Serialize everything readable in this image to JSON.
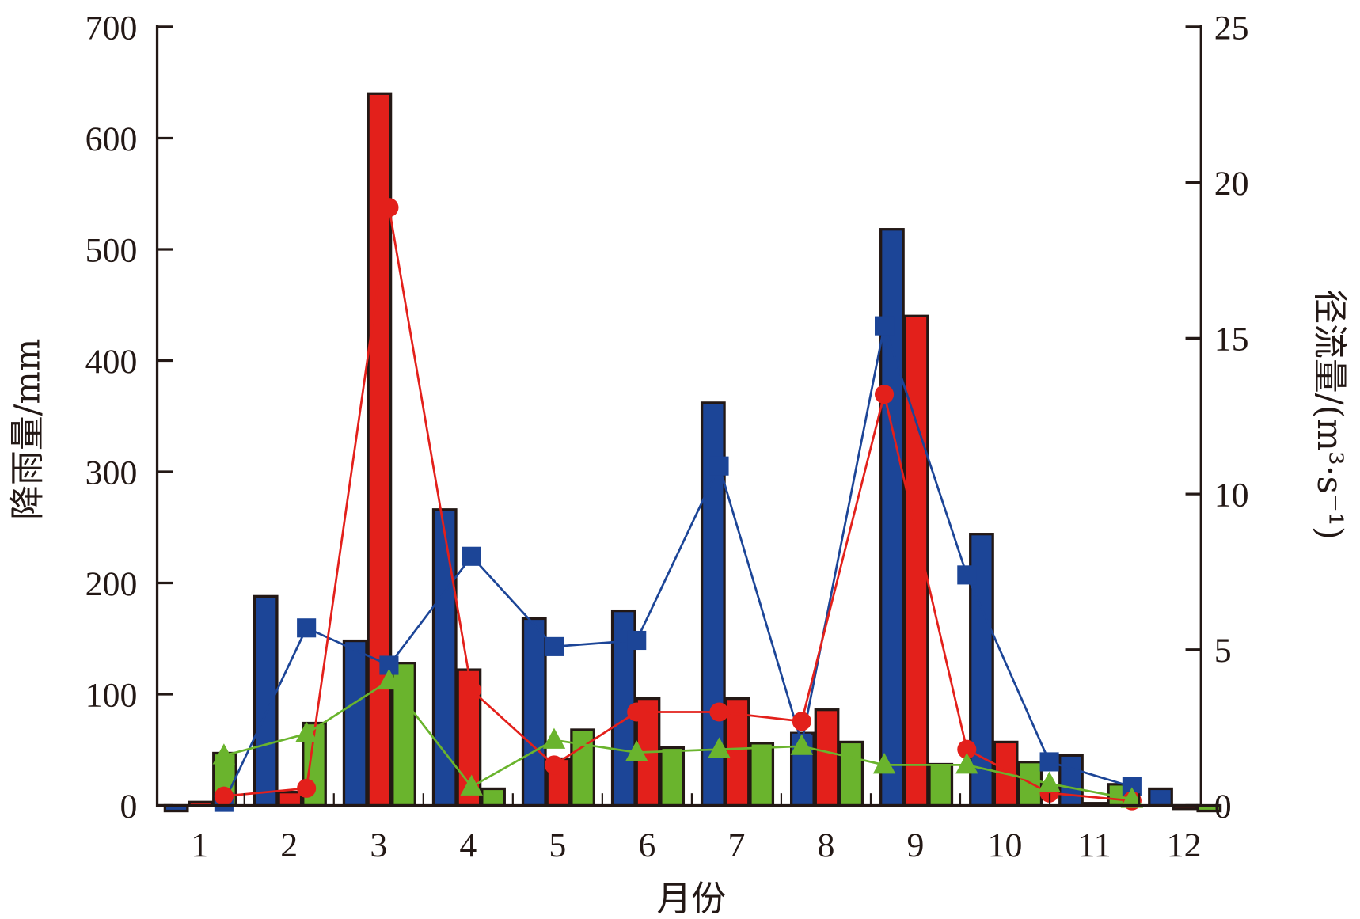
{
  "chart_data": {
    "type": "bar+line",
    "title": "",
    "xlabel": "月份",
    "ylabel_left": "降雨量/mm",
    "ylabel_right": "径流量/(m³·s⁻¹)",
    "ylabel_right_parts": {
      "main": "径流量/(m",
      "sup1": "3",
      "mid": "·s",
      "sup2": "-1",
      "end": ")"
    },
    "categories": [
      "1",
      "2",
      "3",
      "4",
      "5",
      "6",
      "7",
      "8",
      "9",
      "10",
      "11",
      "12"
    ],
    "ylim_left": [
      0,
      700
    ],
    "yticks_left": [
      "0",
      "100",
      "200",
      "300",
      "400",
      "500",
      "600",
      "700"
    ],
    "ylim_right": [
      0,
      25
    ],
    "yticks_right": [
      "0",
      "5",
      "10",
      "15",
      "20",
      "25"
    ],
    "grid": false,
    "legend": "none",
    "bar_series": [
      {
        "color": "#1c4597",
        "values": [
          -5,
          188,
          148,
          266,
          168,
          175,
          362,
          65,
          518,
          244,
          45,
          15
        ]
      },
      {
        "color": "#e3201b",
        "values": [
          3,
          12,
          640,
          122,
          42,
          96,
          96,
          86,
          440,
          57,
          2,
          -3
        ]
      },
      {
        "color": "#6ab42d",
        "values": [
          47,
          74,
          128,
          15,
          68,
          52,
          56,
          57,
          37,
          39,
          19,
          -5
        ]
      }
    ],
    "line_series": [
      {
        "color": "#1c4597",
        "marker": "square",
        "values": [
          0.1,
          5.7,
          4.5,
          8.0,
          5.1,
          5.3,
          10.9,
          2.0,
          15.4,
          7.4,
          1.4,
          0.6
        ]
      },
      {
        "color": "#e3201b",
        "marker": "circle",
        "values": [
          0.3,
          0.55,
          19.2,
          3.7,
          1.3,
          3.0,
          3.0,
          2.7,
          13.2,
          1.8,
          0.4,
          0.15
        ]
      },
      {
        "color": "#6ab42d",
        "marker": "triangle",
        "values": [
          1.6,
          2.3,
          4.0,
          0.6,
          2.1,
          1.7,
          1.8,
          1.9,
          1.3,
          1.3,
          0.7,
          0.2
        ]
      }
    ]
  }
}
